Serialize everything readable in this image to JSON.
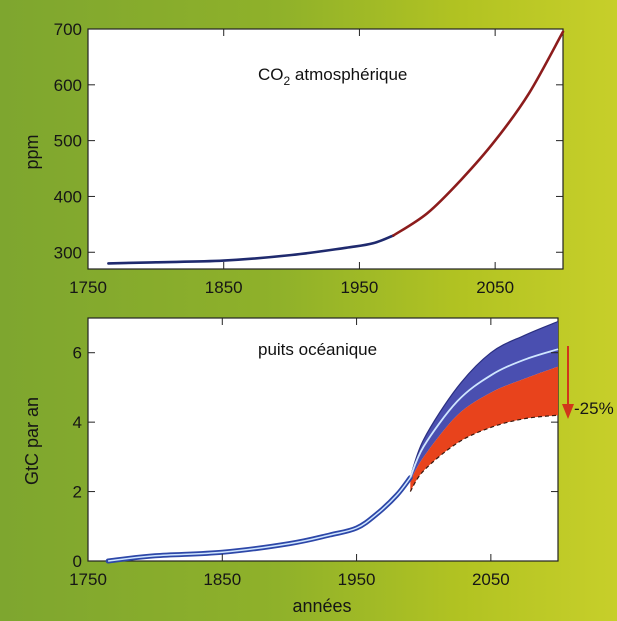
{
  "chart_data": [
    {
      "type": "line",
      "title": "CO",
      "title_sub": "2",
      "title_rest": " atmosphérique",
      "ylabel": "ppm",
      "xlabel": "",
      "xlim": [
        1750,
        2100
      ],
      "ylim": [
        270,
        700
      ],
      "xticks": [
        1750,
        1850,
        1950,
        2050
      ],
      "yticks": [
        300,
        400,
        500,
        600,
        700
      ],
      "grid": false,
      "series": [
        {
          "color": "#1f2a6e",
          "x": [
            1765,
            1800,
            1850,
            1900,
            1940,
            1960,
            1975
          ],
          "y": [
            280,
            282,
            285,
            295,
            308,
            316,
            330
          ]
        },
        {
          "color": "#8c1c1c",
          "x": [
            1975,
            2000,
            2025,
            2050,
            2075,
            2100
          ],
          "y": [
            330,
            370,
            430,
            500,
            585,
            695
          ]
        }
      ]
    },
    {
      "type": "area",
      "title": "puits océanique",
      "ylabel": "GtC par an",
      "xlabel": "années",
      "xlim": [
        1750,
        2100
      ],
      "ylim": [
        0,
        7
      ],
      "xticks": [
        1750,
        1850,
        1950,
        2050
      ],
      "yticks": [
        0,
        2,
        4,
        6
      ],
      "grid": false,
      "annotation": "-25%",
      "colors": {
        "upper_band": "#4a4fb0",
        "lower_band": "#e8431c",
        "central_line": "#cfe6ff",
        "arrow": "#d1361a"
      },
      "series": [
        {
          "x": [
            1765,
            1800,
            1850,
            1900,
            1930,
            1950,
            1965,
            1980,
            1990
          ],
          "y": [
            0,
            0.15,
            0.25,
            0.5,
            0.75,
            0.95,
            1.35,
            1.9,
            2.4
          ]
        },
        {
          "x": [
            1990,
            2000,
            2025,
            2050,
            2075,
            2100
          ],
          "upper": [
            2.4,
            3.5,
            5.0,
            6.0,
            6.5,
            6.9
          ],
          "central": [
            2.4,
            3.3,
            4.6,
            5.35,
            5.8,
            6.1
          ],
          "middle": [
            2.3,
            3.0,
            4.2,
            4.85,
            5.25,
            5.6
          ],
          "lower": [
            2.0,
            2.6,
            3.4,
            3.85,
            4.1,
            4.2
          ]
        }
      ]
    }
  ]
}
